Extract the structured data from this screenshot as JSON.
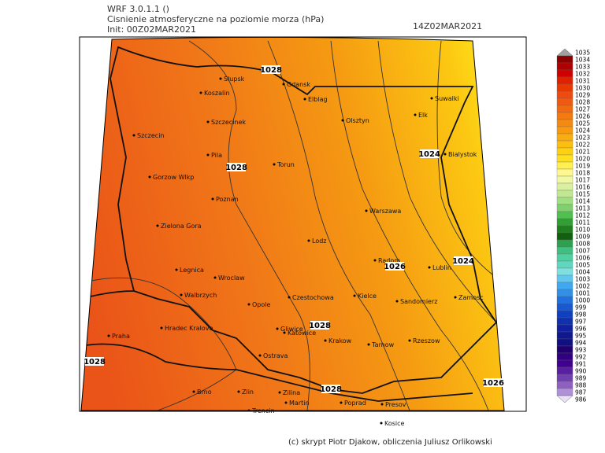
{
  "header": {
    "model": "WRF 3.0.1.1 ()",
    "title": "Cisnienie atmosferyczne na poziomie morza (hPa)",
    "init": "Init: 00Z02MAR2021",
    "valid": "14Z02MAR2021"
  },
  "cities": [
    "Slupsk",
    "Koszalin",
    "Gdansk",
    "Elblag",
    "Suwalki",
    "Szczecinek",
    "Olsztyn",
    "Elk",
    "Szczecin",
    "Bialystok",
    "Pila",
    "Torun",
    "Gorzow Wlkp",
    "Poznan",
    "Warszawa",
    "Zielona Gora",
    "Lodz",
    "Radom",
    "Lublin",
    "Legnica",
    "Wroclaw",
    "Walbrzych",
    "Opole",
    "Czestochowa",
    "Kielce",
    "Sandomierz",
    "Zamosc",
    "Hradec Kralove",
    "Gliwice",
    "Katowice",
    "Praha",
    "Krakow",
    "Tarnow",
    "Rzeszow",
    "Ostrava",
    "Brno",
    "Zlin",
    "Zilina",
    "Martin",
    "Poprad",
    "Presov",
    "Kosice",
    "Trencin"
  ],
  "isobar_labels": [
    1028,
    1028,
    1024,
    1026,
    1024,
    1028,
    1028,
    1028,
    1026
  ],
  "colorbar": {
    "levels": [
      1035,
      1034,
      1033,
      1032,
      1031,
      1030,
      1029,
      1028,
      1027,
      1026,
      1025,
      1024,
      1023,
      1022,
      1021,
      1020,
      1019,
      1018,
      1017,
      1016,
      1015,
      1014,
      1013,
      1012,
      1011,
      1010,
      1009,
      1008,
      1007,
      1006,
      1005,
      1004,
      1003,
      1002,
      1001,
      1000,
      999,
      998,
      997,
      996,
      995,
      994,
      993,
      992,
      991,
      990,
      989,
      988,
      987,
      986
    ],
    "colors": [
      "#a0a0a0",
      "#8b0000",
      "#b00000",
      "#d00000",
      "#e02000",
      "#e83a00",
      "#f04a10",
      "#f05a10",
      "#f26a10",
      "#f47a10",
      "#f68a10",
      "#f89a10",
      "#faac10",
      "#fcbe10",
      "#fdd010",
      "#ffe020",
      "#fff050",
      "#fff890",
      "#f0f8a0",
      "#d8f0a0",
      "#c0e890",
      "#a0e080",
      "#80d070",
      "#50c050",
      "#30a030",
      "#208020",
      "#106010",
      "#30a050",
      "#40c080",
      "#50d0a0",
      "#60d8c0",
      "#80e0e0",
      "#60c8f0",
      "#40a8f0",
      "#3090e8",
      "#2070e0",
      "#1858d0",
      "#1040c0",
      "#1030b0",
      "#1020a0",
      "#101890",
      "#101080",
      "#200070",
      "#300080",
      "#400090",
      "#5820a0",
      "#7040b0",
      "#9060c0",
      "#b090d8",
      "#e8e0f4"
    ]
  },
  "footer": "(c) skrypt Piotr Djakow, obliczenia Juliusz Orlikowski"
}
